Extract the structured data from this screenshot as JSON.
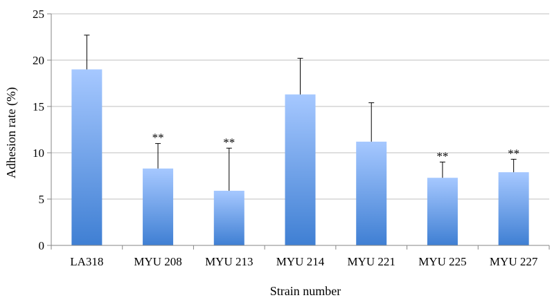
{
  "chart_data": {
    "type": "bar",
    "xlabel": "Strain number",
    "ylabel": "Adhesion rate (%)",
    "ylim": [
      0,
      25
    ],
    "yticks": [
      0,
      5,
      10,
      15,
      20,
      25
    ],
    "grid": true,
    "categories": [
      "LA318",
      "MYU 208",
      "MYU 213",
      "MYU 214",
      "MYU 221",
      "MYU 225",
      "MYU 227"
    ],
    "values": [
      19.0,
      8.3,
      5.9,
      16.3,
      11.2,
      7.3,
      7.9
    ],
    "error_upper": [
      3.7,
      2.7,
      4.6,
      3.9,
      4.2,
      1.7,
      1.4
    ],
    "annotations": [
      "",
      "**",
      "**",
      "",
      "",
      "**",
      "**"
    ],
    "colors": {
      "bar_top": "#a6c8ff",
      "bar_bottom": "#3f7fd3",
      "grid": "#bfbfbf",
      "axis": "#868686",
      "error": "#000000"
    }
  }
}
